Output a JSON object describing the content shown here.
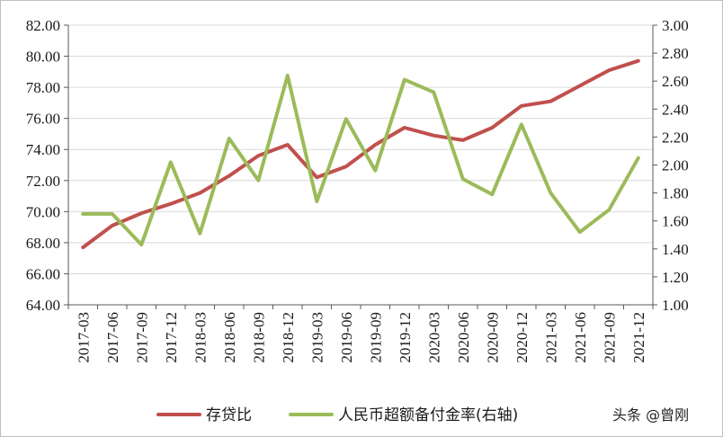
{
  "chart_data": {
    "type": "line",
    "categories": [
      "2017-03",
      "2017-06",
      "2017-09",
      "2017-12",
      "2018-03",
      "2018-06",
      "2018-09",
      "2018-12",
      "2019-03",
      "2019-06",
      "2019-09",
      "2019-12",
      "2020-03",
      "2020-06",
      "2020-09",
      "2020-12",
      "2021-03",
      "2021-06",
      "2021-09",
      "2021-12"
    ],
    "series": [
      {
        "name": "存贷比",
        "axis": "left",
        "color": "#c0504d",
        "values": [
          67.7,
          69.1,
          69.9,
          70.5,
          71.2,
          72.3,
          73.6,
          74.3,
          72.2,
          72.9,
          74.3,
          75.4,
          74.9,
          74.6,
          75.4,
          76.8,
          77.1,
          78.1,
          79.1,
          79.7
        ]
      },
      {
        "name": "人民币超额备付金率(右轴)",
        "axis": "right",
        "color": "#9bbb59",
        "values": [
          1.65,
          1.65,
          1.43,
          2.02,
          1.51,
          2.19,
          1.89,
          2.64,
          1.74,
          2.33,
          1.96,
          2.61,
          2.52,
          1.9,
          1.79,
          2.29,
          1.8,
          1.52,
          1.68,
          2.05
        ]
      }
    ],
    "ylim_left": [
      64,
      82
    ],
    "yticks_left": [
      "64.00",
      "66.00",
      "68.00",
      "70.00",
      "72.00",
      "74.00",
      "76.00",
      "78.00",
      "80.00",
      "82.00"
    ],
    "ylim_right": [
      1.0,
      3.0
    ],
    "yticks_right": [
      "1.00",
      "1.20",
      "1.40",
      "1.60",
      "1.80",
      "2.00",
      "2.20",
      "2.40",
      "2.60",
      "2.80",
      "3.00"
    ],
    "grid": true,
    "legend_position": "bottom",
    "title": "",
    "xlabel": "",
    "ylabel": ""
  },
  "watermark": "头条 @曾刚"
}
